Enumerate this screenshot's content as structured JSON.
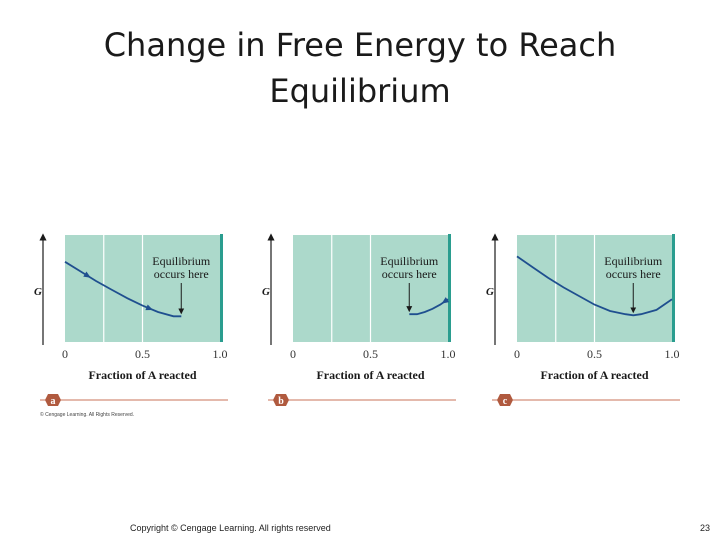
{
  "slide": {
    "title_line1": "Change in Free Energy to Reach",
    "title_line2": "Equilibrium",
    "footer": "Copyright © Cengage Learning. All rights reserved",
    "page_number": "23"
  },
  "figure": {
    "credit": "© Cengage Learning. All Rights Reserved.",
    "colors": {
      "plot_bg": "#acd9cb",
      "plot_edge": "#2a9d8f",
      "curve": "#1f4f8f",
      "band": "#c8735a",
      "badge": "#b05a3f"
    }
  },
  "chart_data": [
    {
      "type": "line",
      "panel_label": "a",
      "xlabel": "Fraction of A reacted",
      "ylabel": "G",
      "xticks": [
        "0",
        "0.5",
        "1.0"
      ],
      "xlim": [
        0,
        1
      ],
      "annotation": [
        "Equilibrium",
        "occurs here"
      ],
      "equilibrium_x": 0.75,
      "series": [
        {
          "x": [
            0.0,
            0.1,
            0.2,
            0.3,
            0.4,
            0.5,
            0.6,
            0.7,
            0.75
          ],
          "y": [
            0.75,
            0.66,
            0.57,
            0.49,
            0.41,
            0.34,
            0.28,
            0.24,
            0.24
          ]
        }
      ],
      "ylim": [
        0,
        1
      ]
    },
    {
      "type": "line",
      "panel_label": "b",
      "xlabel": "Fraction of A reacted",
      "ylabel": "G",
      "xticks": [
        "0",
        "0.5",
        "1.0"
      ],
      "xlim": [
        0,
        1
      ],
      "annotation": [
        "Equilibrium",
        "occurs here"
      ],
      "equilibrium_x": 0.75,
      "series": [
        {
          "x": [
            0.75,
            0.8,
            0.85,
            0.9,
            0.95,
            1.0
          ],
          "y": [
            0.26,
            0.26,
            0.28,
            0.31,
            0.35,
            0.4
          ]
        }
      ],
      "ylim": [
        0,
        1
      ]
    },
    {
      "type": "line",
      "panel_label": "c",
      "xlabel": "Fraction of A reacted",
      "ylabel": "G",
      "xticks": [
        "0",
        "0.5",
        "1.0"
      ],
      "xlim": [
        0,
        1
      ],
      "annotation": [
        "Equilibrium",
        "occurs here"
      ],
      "equilibrium_x": 0.75,
      "series": [
        {
          "x": [
            0.0,
            0.1,
            0.2,
            0.3,
            0.4,
            0.5,
            0.6,
            0.7,
            0.75,
            0.8,
            0.9,
            1.0
          ],
          "y": [
            0.8,
            0.7,
            0.6,
            0.51,
            0.43,
            0.35,
            0.29,
            0.26,
            0.25,
            0.26,
            0.3,
            0.4
          ]
        }
      ],
      "ylim": [
        0,
        1
      ]
    }
  ]
}
